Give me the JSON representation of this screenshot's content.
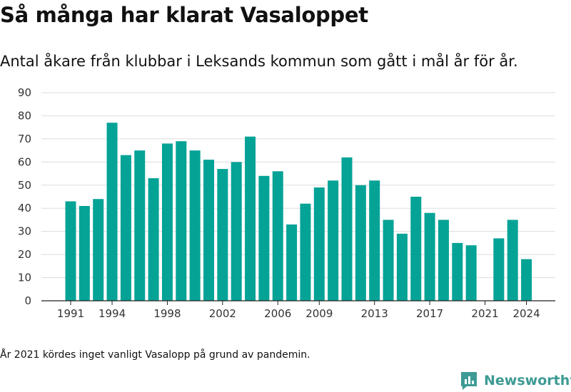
{
  "chart_data": {
    "type": "bar",
    "title": "Så många har klarat Vasaloppet",
    "subtitle": "Antal åkare från klubbar i Leksands kommun som gått i mål år för år.",
    "x": [
      1991,
      1992,
      1993,
      1994,
      1995,
      1996,
      1997,
      1998,
      1999,
      2000,
      2001,
      2002,
      2003,
      2004,
      2005,
      2006,
      2007,
      2008,
      2009,
      2010,
      2011,
      2012,
      2013,
      2014,
      2015,
      2016,
      2017,
      2018,
      2019,
      2020,
      2021,
      2022,
      2023,
      2024
    ],
    "values": [
      43,
      41,
      44,
      77,
      63,
      65,
      53,
      68,
      69,
      65,
      61,
      57,
      60,
      71,
      54,
      56,
      33,
      42,
      49,
      52,
      62,
      50,
      52,
      35,
      29,
      45,
      38,
      35,
      25,
      24,
      null,
      27,
      35,
      18
    ],
    "xtick_labels": [
      "1991",
      "1994",
      "1998",
      "2002",
      "2006",
      "2009",
      "2013",
      "2017",
      "2021",
      "2024"
    ],
    "yticks": [
      0,
      10,
      20,
      30,
      40,
      50,
      60,
      70,
      80,
      90
    ],
    "ylim": [
      0,
      90
    ],
    "xlabel": "",
    "ylabel": "",
    "grid": true,
    "bar_color": "#05a396",
    "grid_color": "#dddddd"
  },
  "footnote": "År 2021 kördes inget vanligt Vasalopp på grund av pandemin.",
  "brand": {
    "name": "Newsworthy",
    "color": "#3d9a94",
    "icon": "newsworthy-logo-icon"
  }
}
